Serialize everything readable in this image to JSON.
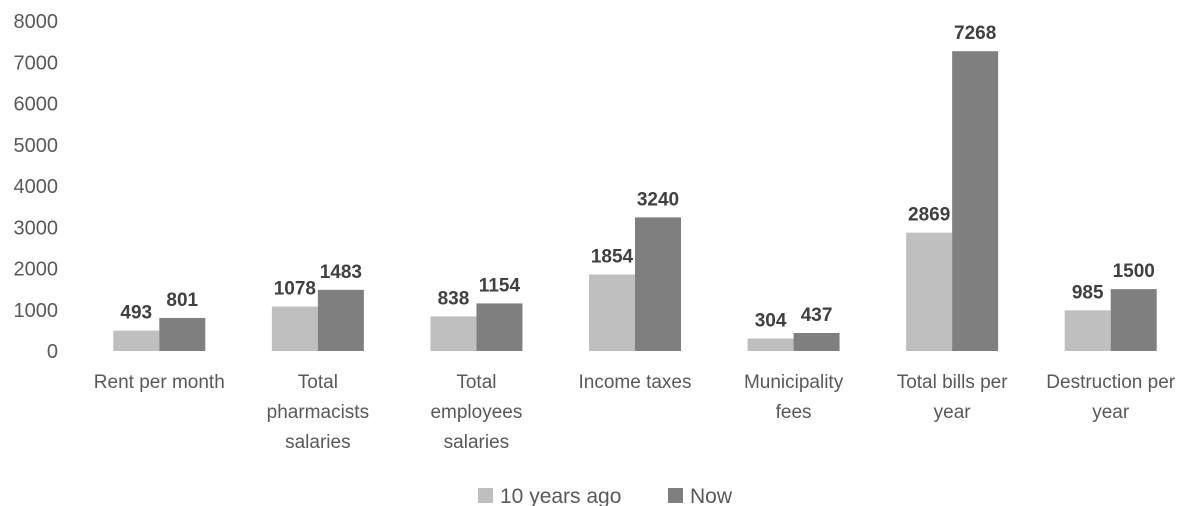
{
  "chart_data": {
    "type": "bar",
    "categories": [
      [
        "Rent per month"
      ],
      [
        "Total",
        "pharmacists",
        "salaries"
      ],
      [
        "Total",
        "employees",
        "salaries"
      ],
      [
        "Income taxes"
      ],
      [
        "Municipality",
        "fees"
      ],
      [
        "Total bills per",
        "year"
      ],
      [
        "Destruction per",
        "year"
      ]
    ],
    "series": [
      {
        "name": "10 years ago",
        "values": [
          493,
          1078,
          838,
          1854,
          304,
          2869,
          985
        ],
        "color": "#bfbfbf"
      },
      {
        "name": "Now",
        "values": [
          801,
          1483,
          1154,
          3240,
          437,
          7268,
          1500
        ],
        "color": "#7f7f7f"
      }
    ],
    "y_ticks": [
      "0",
      "1000",
      "2000",
      "3000",
      "4000",
      "5000",
      "6000",
      "7000",
      "8000"
    ],
    "ylim": [
      0,
      8000
    ],
    "grid": false,
    "legend_position": "bottom",
    "data_labels": true
  }
}
